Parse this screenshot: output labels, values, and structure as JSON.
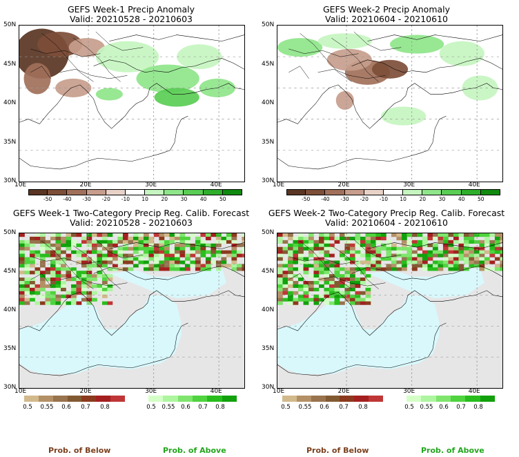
{
  "panels": [
    {
      "title_line1": "GEFS Week-1 Precip Anomaly",
      "title_line2": "Valid: 20210528 - 20210603"
    },
    {
      "title_line1": "GEFS Week-2 Precip Anomaly",
      "title_line2": "Valid: 20210604 - 20210610"
    },
    {
      "title_line1": "GEFS Week-1 Two-Category Precip Reg. Calib. Forecast",
      "title_line2": "Valid: 20210528 - 20210603"
    },
    {
      "title_line1": "GEFS Week-2 Two-Category Precip Reg. Calib. Forecast",
      "title_line2": "Valid: 20210604 - 20210610"
    }
  ],
  "axes": {
    "lat_labels": [
      "50N",
      "45N",
      "40N",
      "35N",
      "30N"
    ],
    "lon_labels": [
      "10E",
      "20E",
      "30E",
      "40E"
    ]
  },
  "anomaly_colorbar": {
    "labels": [
      "-50",
      "-40",
      "-30",
      "-20",
      "-10",
      "10",
      "20",
      "30",
      "40",
      "50"
    ],
    "colors": [
      "#5a3523",
      "#7d4e38",
      "#a1705a",
      "#c79d8c",
      "#e8d2c7",
      "#ffffff",
      "#c6f5c0",
      "#8fe58a",
      "#5acd55",
      "#2fae2b",
      "#108a0e"
    ]
  },
  "prob_below_colorbar": {
    "labels": [
      "0.5",
      "0.55",
      "0.6",
      "0.7",
      "0.8"
    ],
    "colors": [
      "#d2b98c",
      "#b49066",
      "#98734e",
      "#825a32",
      "#8b3a1e",
      "#a42020",
      "#c03636"
    ]
  },
  "prob_above_colorbar": {
    "labels": [
      "0.5",
      "0.55",
      "0.6",
      "0.7",
      "0.8"
    ],
    "colors": [
      "#d4ffc7",
      "#aef5a0",
      "#7fe56d",
      "#4fd33e",
      "#28bd1c",
      "#12a10c"
    ]
  },
  "footer": {
    "below": "Prob. of Below",
    "above": "Prob. of Above"
  },
  "colors": {
    "below_text": "#7a3f1c",
    "above_text": "#21a61c",
    "sea": "#d8f8fc",
    "missing": "#e6e6e6"
  }
}
